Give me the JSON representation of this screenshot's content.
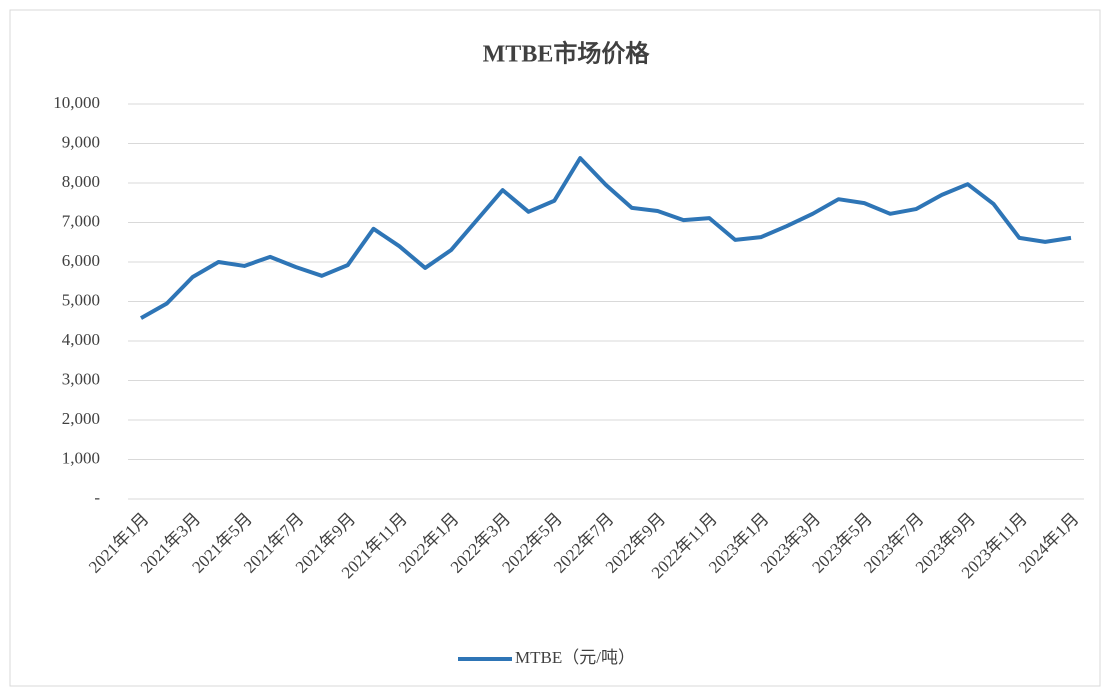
{
  "chart_data": {
    "type": "line",
    "title": "MTBE市场价格",
    "categories": [
      "2021年1月",
      null,
      "2021年3月",
      null,
      "2021年5月",
      null,
      "2021年7月",
      null,
      "2021年9月",
      null,
      "2021年11月",
      null,
      "2022年1月",
      null,
      "2022年3月",
      null,
      "2022年5月",
      null,
      "2022年7月",
      null,
      "2022年9月",
      null,
      "2022年11月",
      null,
      "2023年1月",
      null,
      "2023年3月",
      null,
      "2023年5月",
      null,
      "2023年7月",
      null,
      "2023年9月",
      null,
      "2023年11月",
      null,
      "2024年1月"
    ],
    "series": [
      {
        "name": "MTBE（元/吨）",
        "color": "#2e75b6",
        "values": [
          4580,
          4950,
          5620,
          6000,
          5900,
          6130,
          5870,
          5650,
          5920,
          6840,
          6400,
          5850,
          6300,
          7060,
          7820,
          7270,
          7550,
          8630,
          7950,
          7370,
          7290,
          7060,
          7110,
          6560,
          6630,
          6910,
          7220,
          7590,
          7490,
          7220,
          7340,
          7700,
          7970,
          7470,
          6610,
          6510,
          6610
        ]
      }
    ],
    "ylim": [
      0,
      10000
    ],
    "yticks": [
      {
        "value": 0,
        "label": "-"
      },
      {
        "value": 1000,
        "label": "1,000"
      },
      {
        "value": 2000,
        "label": "2,000"
      },
      {
        "value": 3000,
        "label": "3,000"
      },
      {
        "value": 4000,
        "label": "4,000"
      },
      {
        "value": 5000,
        "label": "5,000"
      },
      {
        "value": 6000,
        "label": "6,000"
      },
      {
        "value": 7000,
        "label": "7,000"
      },
      {
        "value": 8000,
        "label": "8,000"
      },
      {
        "value": 9000,
        "label": "9,000"
      },
      {
        "value": 10000,
        "label": "10,000"
      }
    ],
    "grid": true,
    "legend": "bottom"
  }
}
